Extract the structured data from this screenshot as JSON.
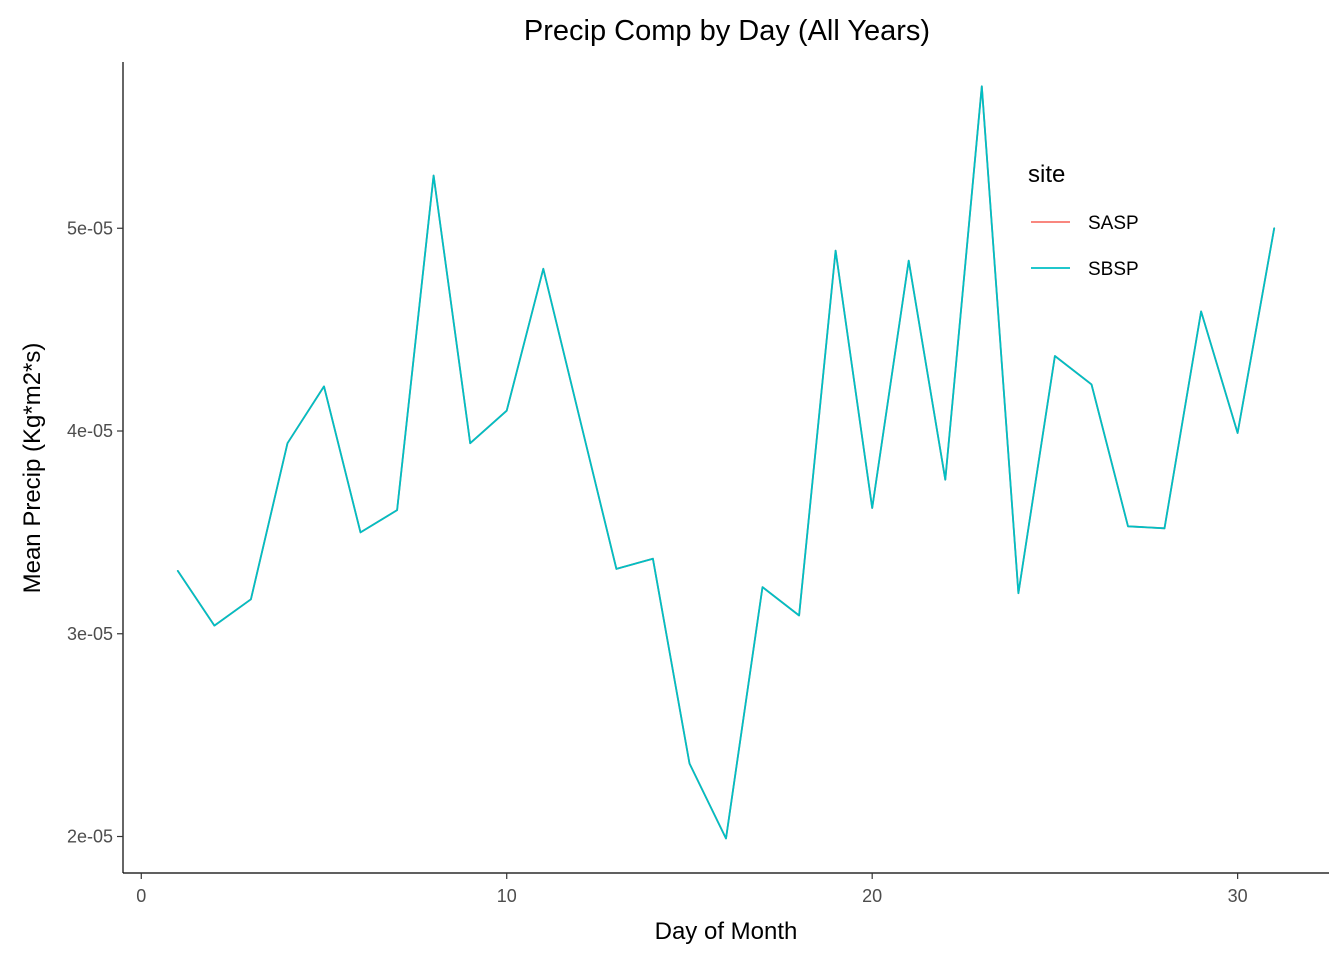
{
  "chart_data": {
    "type": "line",
    "title": "Precip Comp by Day (All Years)",
    "xlabel": "Day of Month",
    "ylabel": "Mean Precip (Kg*m2*s)",
    "xlim": [
      -0.5,
      32.5
    ],
    "ylim": [
      1.82e-05,
      5.82e-05
    ],
    "x_ticks": [
      0,
      10,
      20,
      30
    ],
    "x_tick_labels": [
      "0",
      "10",
      "20",
      "30"
    ],
    "y_ticks": [
      2e-05,
      3e-05,
      4e-05,
      5e-05
    ],
    "y_tick_labels": [
      "2e-05",
      "3e-05",
      "4e-05",
      "5e-05"
    ],
    "grid": false,
    "legend": {
      "title": "site",
      "placement": "right"
    },
    "x": [
      1,
      2,
      3,
      4,
      5,
      6,
      7,
      8,
      9,
      10,
      11,
      12,
      13,
      14,
      15,
      16,
      17,
      18,
      19,
      20,
      21,
      22,
      23,
      24,
      25,
      26,
      27,
      28,
      29,
      30,
      31
    ],
    "series": [
      {
        "name": "SASP",
        "color": "#F8766D",
        "values": [
          3.31e-05,
          3.04e-05,
          3.17e-05,
          3.94e-05,
          4.22e-05,
          3.5e-05,
          3.61e-05,
          5.26e-05,
          3.94e-05,
          4.1e-05,
          4.8e-05,
          4.06e-05,
          3.32e-05,
          3.37e-05,
          2.36e-05,
          1.99e-05,
          3.23e-05,
          3.09e-05,
          4.89e-05,
          3.62e-05,
          4.84e-05,
          3.76e-05,
          5.7e-05,
          3.2e-05,
          4.37e-05,
          4.23e-05,
          3.53e-05,
          3.52e-05,
          4.59e-05,
          3.99e-05,
          5e-05
        ]
      },
      {
        "name": "SBSP",
        "color": "#00BFC4",
        "values": [
          3.31e-05,
          3.04e-05,
          3.17e-05,
          3.94e-05,
          4.22e-05,
          3.5e-05,
          3.61e-05,
          5.26e-05,
          3.94e-05,
          4.1e-05,
          4.8e-05,
          4.06e-05,
          3.32e-05,
          3.37e-05,
          2.36e-05,
          1.99e-05,
          3.23e-05,
          3.09e-05,
          4.89e-05,
          3.62e-05,
          4.84e-05,
          3.76e-05,
          5.7e-05,
          3.2e-05,
          4.37e-05,
          4.23e-05,
          3.53e-05,
          3.52e-05,
          4.59e-05,
          3.99e-05,
          5e-05
        ]
      }
    ]
  }
}
